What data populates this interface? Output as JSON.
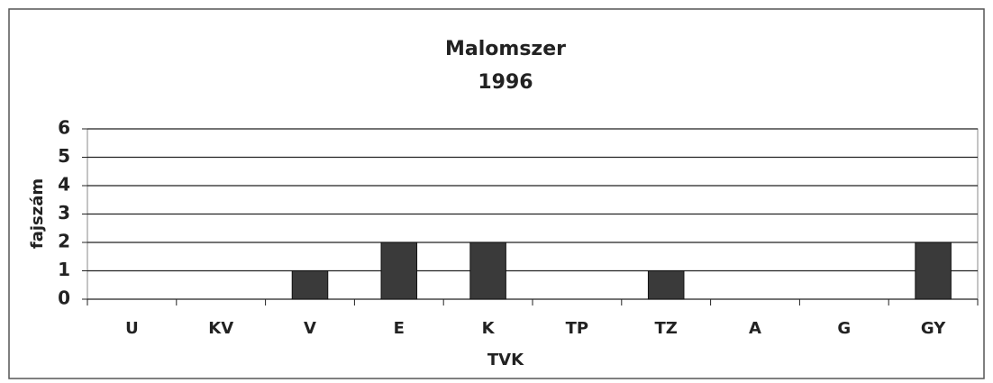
{
  "chart_data": {
    "type": "bar",
    "title": "Malomszer",
    "subtitle": "1996",
    "x_label": "TVK",
    "y_label": "fajszám",
    "categories": [
      "U",
      "KV",
      "V",
      "E",
      "K",
      "TP",
      "TZ",
      "A",
      "G",
      "GY"
    ],
    "values": [
      0,
      0,
      1,
      2,
      2,
      0,
      1,
      0,
      0,
      2
    ],
    "color": "#3a3a3a",
    "ylim": [
      0,
      6
    ],
    "yticks": [
      0,
      1,
      2,
      3,
      4,
      5,
      6
    ],
    "grid": true
  }
}
